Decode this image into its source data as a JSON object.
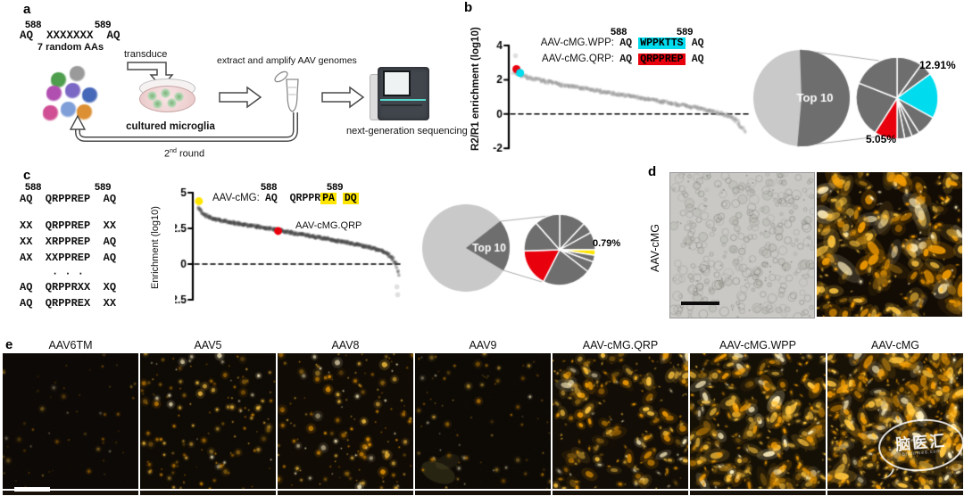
{
  "figure": {
    "panel_a": {
      "label": "a",
      "pos_left": "588",
      "pos_right": "589",
      "library_sequence": "AQ  XXXXXXX  AQ",
      "random_caption": "7 random AAs",
      "step_transduce": "transduce",
      "dish_caption": "cultured microglia",
      "step_extract": "extract and amplify AAV genomes",
      "sequencing_caption": "next-generation sequencing",
      "round_number": "2",
      "round_sup": "nd",
      "round_word": " round"
    },
    "panel_b": {
      "label": "b",
      "pos_left": "588",
      "pos_right": "589",
      "variant_rows": [
        {
          "name": "AAV-cMG.WPP:",
          "left": "AQ",
          "insert": "WPPKTTS",
          "right": "AQ"
        },
        {
          "name": "AAV-cMG.QRP:",
          "left": "AQ",
          "insert": "QRPPREP",
          "right": "AQ"
        }
      ],
      "pct_cyan": "12.91%",
      "pct_red": "5.05%"
    },
    "panel_c": {
      "label": "c",
      "pos_left": "588",
      "pos_right": "589",
      "alignment": [
        "AQ  QRPPREP  AQ",
        "",
        "XX  QRPPREP  XX",
        "XX  XRPPREP  AQ",
        "AX  XXPPREP  AQ",
        "     · · ·",
        "AQ  QRPPRXX  XQ",
        "AQ  QRPPREX  XX"
      ],
      "anno_name": "AAV-cMG:",
      "anno_left": "AQ  ",
      "anno_mid": "QRPPR",
      "anno_hl1": "PA",
      "anno_gap": " ",
      "anno_hl2": "DQ",
      "red_dot_label": "AAV-cMG.QRP",
      "pct_yellow": "0.79%"
    },
    "panel_d": {
      "label": "d",
      "row_label": "AAV-cMG"
    },
    "panel_e": {
      "label": "e"
    },
    "watermark": {
      "text": "脑医汇",
      "subtext": "brainmed.com"
    }
  },
  "colors": {
    "cyan": "#00dbee",
    "red": "#e8000d",
    "yellow": "#ffe600",
    "pie_dark": "#6e6e6e",
    "pie_light": "#c9c9c9"
  },
  "chart_data": [
    {
      "id": "b_rank",
      "type": "scatter",
      "title": "",
      "xlabel": "",
      "ylabel": "R2/R1 enrichment (log10)",
      "ylim": [
        -2,
        4
      ],
      "yticks": [
        4,
        2,
        0,
        -2
      ],
      "zero_line_dashed": true,
      "n_dots": 330,
      "dot_color": "#9d9d9d",
      "curve_points": [
        [
          0,
          2.45
        ],
        [
          4,
          2.2
        ],
        [
          10,
          2.0
        ],
        [
          20,
          1.72
        ],
        [
          30,
          1.48
        ],
        [
          40,
          1.27
        ],
        [
          50,
          1.05
        ],
        [
          60,
          0.82
        ],
        [
          70,
          0.58
        ],
        [
          78,
          0.38
        ],
        [
          85,
          0.18
        ],
        [
          90,
          0.02
        ],
        [
          94,
          -0.15
        ],
        [
          97,
          -0.45
        ],
        [
          100,
          -1.05
        ]
      ],
      "outlier_points": [
        [
          0.6,
          3.4
        ]
      ],
      "highlight_points": [
        {
          "label": "AAV-cMG.QRP",
          "color": "#e8000d",
          "x": 1.0,
          "y": 2.62
        },
        {
          "label": "AAV-cMG.WPP",
          "color": "#00dbee",
          "x": 2.6,
          "y": 2.4
        }
      ]
    },
    {
      "id": "c_rank",
      "type": "scatter",
      "title": "",
      "xlabel": "",
      "ylabel": "Enrichment (log10)",
      "ylim": [
        -2.5,
        5
      ],
      "yticks": [
        5,
        2.5,
        0,
        -2.5
      ],
      "zero_line_dashed": true,
      "n_dots": 380,
      "dot_color": "#454545",
      "curve_points": [
        [
          0,
          3.95
        ],
        [
          3,
          3.45
        ],
        [
          8,
          3.15
        ],
        [
          15,
          2.95
        ],
        [
          25,
          2.72
        ],
        [
          35,
          2.5
        ],
        [
          45,
          2.25
        ],
        [
          55,
          2.0
        ],
        [
          65,
          1.75
        ],
        [
          75,
          1.5
        ],
        [
          85,
          1.2
        ],
        [
          91,
          0.95
        ],
        [
          95,
          0.7
        ],
        [
          97.5,
          0.35
        ],
        [
          99,
          -0.1
        ],
        [
          100,
          -0.75
        ]
      ],
      "outlier_points": [
        [
          99.4,
          -1.6
        ],
        [
          99.8,
          -2.15
        ]
      ],
      "highlight_points": [
        {
          "label": "",
          "color": "#ffe600",
          "x": 0.4,
          "y": 4.4
        },
        {
          "label": "AAV-cMG.QRP",
          "color": "#e8000d",
          "x": 40,
          "y": 2.32
        }
      ]
    },
    {
      "id": "b_pie",
      "type": "pie",
      "top_label": "Top 10",
      "big": {
        "light_value": 48,
        "dark_value": 52,
        "light_color": "#c9c9c9",
        "dark_color": "#6e6e6e"
      },
      "small_slices": [
        {
          "value": 10,
          "color": "#6e6e6e"
        },
        {
          "value": 5,
          "color": "#6e6e6e"
        },
        {
          "value": 18,
          "color": "#00dbee",
          "label": "12.91%"
        },
        {
          "value": 8,
          "color": "#6e6e6e"
        },
        {
          "value": 3,
          "color": "#6e6e6e"
        },
        {
          "value": 3,
          "color": "#6e6e6e"
        },
        {
          "value": 3,
          "color": "#6e6e6e"
        },
        {
          "value": 9,
          "color": "#e8000d",
          "label": "5.05%"
        },
        {
          "value": 22,
          "color": "#6e6e6e"
        },
        {
          "value": 19,
          "color": "#6e6e6e"
        }
      ]
    },
    {
      "id": "c_pie",
      "type": "pie",
      "top_label": "Top 10",
      "big": {
        "light_value": 81,
        "dark_value": 19,
        "light_color": "#c9c9c9",
        "dark_color": "#6e6e6e"
      },
      "small_slices": [
        {
          "value": 12,
          "color": "#6e6e6e"
        },
        {
          "value": 5,
          "color": "#6e6e6e"
        },
        {
          "value": 8,
          "color": "#6e6e6e"
        },
        {
          "value": 2.5,
          "color": "#ffe600",
          "label": "0.79%"
        },
        {
          "value": 3,
          "color": "#6e6e6e"
        },
        {
          "value": 5,
          "color": "#6e6e6e"
        },
        {
          "value": 22,
          "color": "#6e6e6e"
        },
        {
          "value": 17,
          "color": "#e8000d"
        },
        {
          "value": 14,
          "color": "#6e6e6e"
        },
        {
          "value": 11.5,
          "color": "#6e6e6e"
        }
      ]
    }
  ],
  "micrographs": {
    "d_bright": {
      "kind": "brightfield",
      "bg": "#c9c8c4",
      "cells": 300
    },
    "d_fluor": {
      "kind": "fluorescence",
      "bg": "#120c05",
      "dots": 280,
      "bright": 1.0,
      "max_r": 4.2,
      "elong": 0.6
    },
    "e": [
      {
        "label": "AAV6TM",
        "bg": "#0d0906",
        "dots": 55,
        "bright": 0.45,
        "max_r": 1.8,
        "elong": 0
      },
      {
        "label": "AAV5",
        "bg": "#0e0a05",
        "dots": 150,
        "bright": 0.8,
        "max_r": 2.2,
        "elong": 0
      },
      {
        "label": "AAV8",
        "bg": "#100b05",
        "dots": 160,
        "bright": 0.85,
        "max_r": 2.4,
        "elong": 0
      },
      {
        "label": "AAV9",
        "bg": "#0d0a06",
        "dots": 85,
        "bright": 0.6,
        "max_r": 2.0,
        "elong": 0,
        "smear": true
      },
      {
        "label": "AAV-cMG.QRP",
        "bg": "#120d06",
        "dots": 230,
        "bright": 0.9,
        "max_r": 2.8,
        "elong": 0.5
      },
      {
        "label": "AAV-cMG.WPP",
        "bg": "#151006",
        "dots": 300,
        "bright": 1.0,
        "max_r": 3.2,
        "elong": 0.7
      },
      {
        "label": "AAV-cMG",
        "bg": "#181106",
        "dots": 430,
        "bright": 1.0,
        "max_r": 3.4,
        "elong": 0.7
      }
    ]
  }
}
